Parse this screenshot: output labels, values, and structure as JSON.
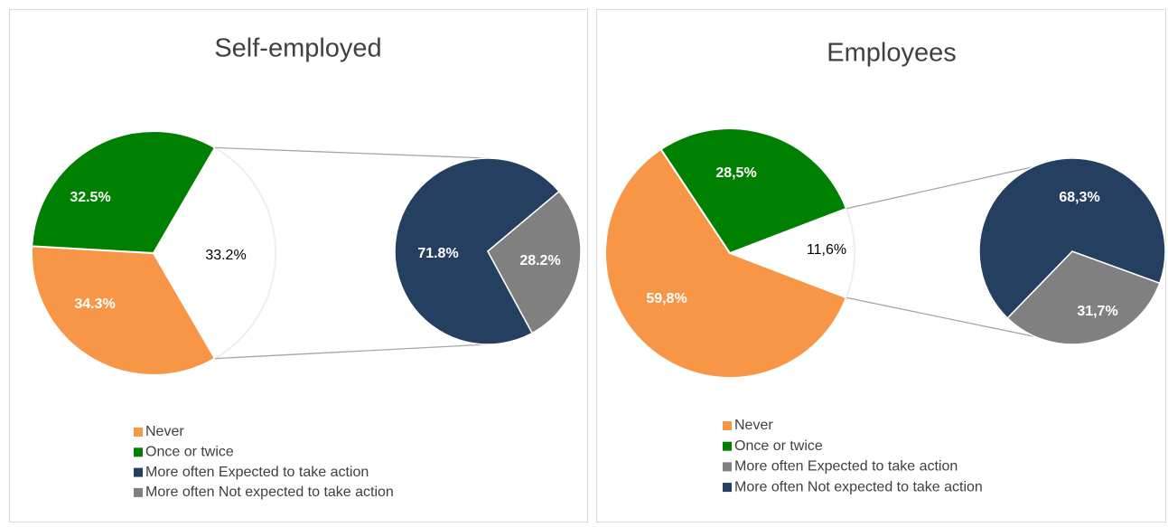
{
  "chart_data": [
    {
      "type": "pie-of-pie",
      "title": "Self-employed",
      "categories": [
        "Never",
        "Once or twice",
        null
      ],
      "values": [
        34.3,
        32.5,
        33.2
      ],
      "value_labels": [
        "34.3%",
        "32.5%",
        "33.2%"
      ],
      "colors": [
        "#f79646",
        "#008000",
        "#ffffff"
      ],
      "secondary": {
        "categories": [
          "More often Expected to take action",
          "More often Not expected to take action"
        ],
        "values": [
          71.8,
          28.2
        ],
        "value_labels": [
          "71.8%",
          "28.2%"
        ],
        "colors": [
          "#243f60",
          "#808080"
        ]
      }
    },
    {
      "type": "pie-of-pie",
      "title": "Employees",
      "categories": [
        "Never",
        "Once or twice",
        null
      ],
      "values": [
        59.8,
        28.5,
        11.6
      ],
      "value_labels": [
        "59,8%",
        "28,5%",
        "11,6%"
      ],
      "colors": [
        "#f79646",
        "#008000",
        "#ffffff"
      ],
      "secondary": {
        "categories": [
          "More often Expected to take action",
          "More often Not expected to take action"
        ],
        "values": [
          31.7,
          68.3
        ],
        "value_labels": [
          "31,7%",
          "68,3%"
        ],
        "colors": [
          "#808080",
          "#243f60"
        ]
      }
    }
  ]
}
